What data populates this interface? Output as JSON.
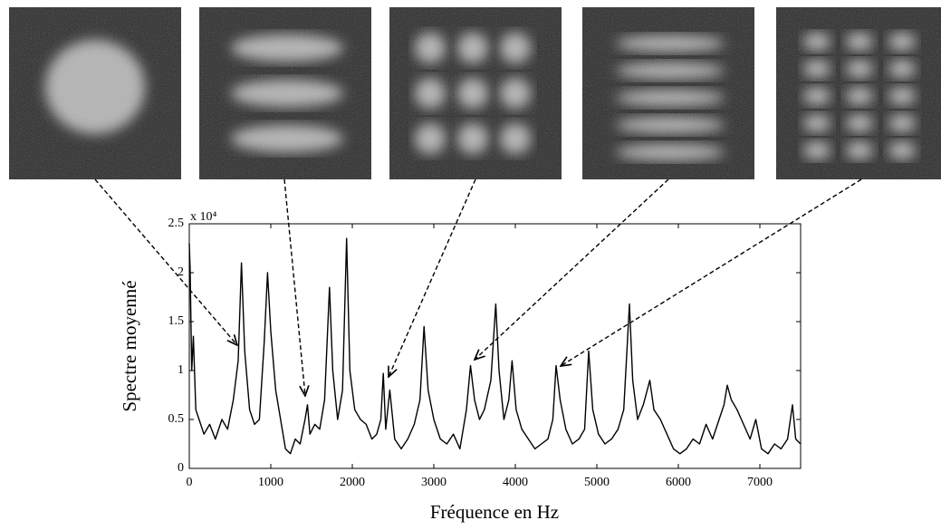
{
  "chart_data": {
    "type": "line",
    "y_label": "Spectre moyenné",
    "x_label": "Fréquence en Hz",
    "y_multiplier": "x 10⁴",
    "xlim": [
      0,
      7500
    ],
    "xticks": [
      0,
      1000,
      2000,
      3000,
      4000,
      5000,
      6000,
      7000
    ],
    "ylim": [
      0,
      2.5
    ],
    "yticks": [
      0,
      0.5,
      1,
      1.5,
      2,
      2.5
    ],
    "x": [
      0,
      10,
      30,
      50,
      80,
      120,
      180,
      250,
      320,
      400,
      470,
      540,
      600,
      640,
      680,
      740,
      800,
      860,
      920,
      960,
      1000,
      1060,
      1120,
      1180,
      1240,
      1300,
      1360,
      1420,
      1450,
      1480,
      1540,
      1600,
      1660,
      1720,
      1760,
      1820,
      1880,
      1930,
      1970,
      2030,
      2100,
      2170,
      2240,
      2300,
      2350,
      2380,
      2410,
      2460,
      2520,
      2600,
      2680,
      2760,
      2830,
      2880,
      2930,
      3000,
      3080,
      3160,
      3240,
      3320,
      3400,
      3450,
      3500,
      3560,
      3620,
      3700,
      3760,
      3800,
      3860,
      3920,
      3960,
      4010,
      4080,
      4160,
      4240,
      4320,
      4400,
      4460,
      4500,
      4550,
      4620,
      4700,
      4780,
      4850,
      4900,
      4950,
      5020,
      5100,
      5180,
      5260,
      5330,
      5400,
      5440,
      5500,
      5570,
      5650,
      5700,
      5780,
      5860,
      5940,
      6020,
      6100,
      6180,
      6260,
      6340,
      6420,
      6500,
      6560,
      6600,
      6650,
      6720,
      6800,
      6880,
      6950,
      7020,
      7100,
      7180,
      7260,
      7340,
      7400,
      7440,
      7500
    ],
    "series": [
      {
        "color": "#000000",
        "values": [
          2.3,
          2.05,
          1.0,
          1.35,
          0.6,
          0.5,
          0.35,
          0.45,
          0.3,
          0.5,
          0.4,
          0.7,
          1.1,
          2.1,
          1.2,
          0.6,
          0.45,
          0.5,
          1.3,
          2.0,
          1.4,
          0.8,
          0.5,
          0.2,
          0.15,
          0.3,
          0.25,
          0.5,
          0.65,
          0.35,
          0.45,
          0.4,
          0.7,
          1.85,
          1.0,
          0.5,
          0.8,
          2.35,
          1.0,
          0.6,
          0.5,
          0.45,
          0.3,
          0.35,
          0.5,
          0.97,
          0.4,
          0.8,
          0.3,
          0.2,
          0.3,
          0.45,
          0.7,
          1.45,
          0.8,
          0.5,
          0.3,
          0.25,
          0.35,
          0.2,
          0.6,
          1.05,
          0.7,
          0.5,
          0.6,
          0.9,
          1.68,
          1.0,
          0.5,
          0.7,
          1.1,
          0.6,
          0.4,
          0.3,
          0.2,
          0.25,
          0.3,
          0.5,
          1.05,
          0.7,
          0.4,
          0.25,
          0.3,
          0.4,
          1.2,
          0.6,
          0.35,
          0.25,
          0.3,
          0.4,
          0.6,
          1.68,
          0.9,
          0.5,
          0.65,
          0.9,
          0.6,
          0.5,
          0.35,
          0.2,
          0.15,
          0.2,
          0.3,
          0.25,
          0.45,
          0.3,
          0.5,
          0.65,
          0.85,
          0.7,
          0.6,
          0.45,
          0.3,
          0.5,
          0.2,
          0.15,
          0.25,
          0.2,
          0.3,
          0.65,
          0.3,
          0.25
        ]
      }
    ]
  }
}
